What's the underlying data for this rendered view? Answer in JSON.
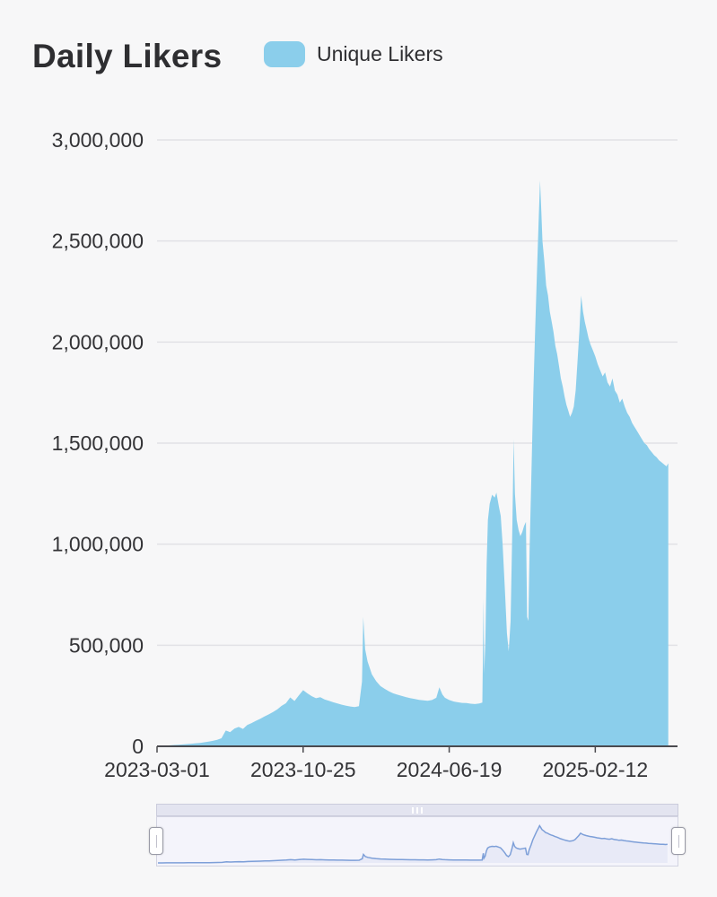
{
  "page": {
    "background_color": "#f7f7f8"
  },
  "header": {
    "title": "Daily Likers"
  },
  "legend": {
    "label": "Unique Likers",
    "swatch_color": "#8BCEEB"
  },
  "navigator": {
    "track_color": "#e3e4f0",
    "grip_color": "#ffffff",
    "background_color": "#f4f4fb",
    "fill_color": "#e8eaf7",
    "line_color": "#7d9fd8",
    "handle_color": "#ffffff",
    "handle_border_color": "#999aa6"
  },
  "chart_data": {
    "type": "area",
    "title": "Daily Likers",
    "legend_entries": [
      "Unique Likers"
    ],
    "legend_position": "top",
    "x_type": "time",
    "x_range": [
      "2023-03-01",
      "2025-06-26"
    ],
    "x_tick_labels": [
      "2023-03-01",
      "2023-10-25",
      "2024-06-19",
      "2025-02-12"
    ],
    "ylim": [
      0,
      3000000
    ],
    "y_ticks": [
      0,
      500000,
      1000000,
      1500000,
      2000000,
      2500000,
      3000000
    ],
    "y_tick_labels": [
      "0",
      "500,000",
      "1,000,000",
      "1,500,000",
      "2,000,000",
      "2,500,000",
      "3,000,000"
    ],
    "grid": "horizontal",
    "grid_color": "#e2e2e6",
    "axis_line_color": "#4a4a4f",
    "axis_label_color": "#333336",
    "series": [
      {
        "name": "Unique Likers",
        "color": "#8BCEEB",
        "points": [
          [
            "2023-03-01",
            2000
          ],
          [
            "2023-03-08",
            3000
          ],
          [
            "2023-03-15",
            4000
          ],
          [
            "2023-03-22",
            5000
          ],
          [
            "2023-03-29",
            6500
          ],
          [
            "2023-04-05",
            8000
          ],
          [
            "2023-04-12",
            9500
          ],
          [
            "2023-04-19",
            11000
          ],
          [
            "2023-04-26",
            13000
          ],
          [
            "2023-05-03",
            15000
          ],
          [
            "2023-05-10",
            17000
          ],
          [
            "2023-05-17",
            20000
          ],
          [
            "2023-05-24",
            23000
          ],
          [
            "2023-05-31",
            27000
          ],
          [
            "2023-06-07",
            32000
          ],
          [
            "2023-06-14",
            40000
          ],
          [
            "2023-06-21",
            78000
          ],
          [
            "2023-06-28",
            70000
          ],
          [
            "2023-07-05",
            88000
          ],
          [
            "2023-07-12",
            96000
          ],
          [
            "2023-07-19",
            86000
          ],
          [
            "2023-07-26",
            105000
          ],
          [
            "2023-08-02",
            115000
          ],
          [
            "2023-08-09",
            126000
          ],
          [
            "2023-08-16",
            136000
          ],
          [
            "2023-08-23",
            148000
          ],
          [
            "2023-08-30",
            158000
          ],
          [
            "2023-09-06",
            170000
          ],
          [
            "2023-09-13",
            183000
          ],
          [
            "2023-09-20",
            200000
          ],
          [
            "2023-09-27",
            213000
          ],
          [
            "2023-10-04",
            242000
          ],
          [
            "2023-10-11",
            224000
          ],
          [
            "2023-10-18",
            252000
          ],
          [
            "2023-10-25",
            278000
          ],
          [
            "2023-11-01",
            262000
          ],
          [
            "2023-11-08",
            248000
          ],
          [
            "2023-11-15",
            238000
          ],
          [
            "2023-11-22",
            243000
          ],
          [
            "2023-11-29",
            232000
          ],
          [
            "2023-12-06",
            225000
          ],
          [
            "2023-12-13",
            218000
          ],
          [
            "2023-12-20",
            212000
          ],
          [
            "2023-12-27",
            206000
          ],
          [
            "2024-01-03",
            201000
          ],
          [
            "2024-01-10",
            197000
          ],
          [
            "2024-01-17",
            194000
          ],
          [
            "2024-01-24",
            199000
          ],
          [
            "2024-01-29",
            320000
          ],
          [
            "2024-01-31",
            640000
          ],
          [
            "2024-02-03",
            480000
          ],
          [
            "2024-02-07",
            420000
          ],
          [
            "2024-02-14",
            356000
          ],
          [
            "2024-02-21",
            322000
          ],
          [
            "2024-02-28",
            298000
          ],
          [
            "2024-03-06",
            284000
          ],
          [
            "2024-03-13",
            272000
          ],
          [
            "2024-03-20",
            262000
          ],
          [
            "2024-03-27",
            255000
          ],
          [
            "2024-04-03",
            249000
          ],
          [
            "2024-04-10",
            243000
          ],
          [
            "2024-04-17",
            238000
          ],
          [
            "2024-04-24",
            234000
          ],
          [
            "2024-05-01",
            230000
          ],
          [
            "2024-05-08",
            227000
          ],
          [
            "2024-05-15",
            225000
          ],
          [
            "2024-05-22",
            229000
          ],
          [
            "2024-05-29",
            240000
          ],
          [
            "2024-06-03",
            292000
          ],
          [
            "2024-06-08",
            256000
          ],
          [
            "2024-06-12",
            240000
          ],
          [
            "2024-06-19",
            229000
          ],
          [
            "2024-06-26",
            222000
          ],
          [
            "2024-07-03",
            218000
          ],
          [
            "2024-07-10",
            215000
          ],
          [
            "2024-07-17",
            214000
          ],
          [
            "2024-07-24",
            211000
          ],
          [
            "2024-07-31",
            209000
          ],
          [
            "2024-08-07",
            212000
          ],
          [
            "2024-08-12",
            216000
          ],
          [
            "2024-08-14",
            730000
          ],
          [
            "2024-08-15",
            360000
          ],
          [
            "2024-08-17",
            520000
          ],
          [
            "2024-08-19",
            900000
          ],
          [
            "2024-08-21",
            1120000
          ],
          [
            "2024-08-24",
            1200000
          ],
          [
            "2024-08-28",
            1245000
          ],
          [
            "2024-09-01",
            1230000
          ],
          [
            "2024-09-04",
            1255000
          ],
          [
            "2024-09-08",
            1185000
          ],
          [
            "2024-09-11",
            1140000
          ],
          [
            "2024-09-14",
            1000000
          ],
          [
            "2024-09-18",
            760000
          ],
          [
            "2024-09-21",
            560000
          ],
          [
            "2024-09-24",
            470000
          ],
          [
            "2024-09-27",
            620000
          ],
          [
            "2024-09-30",
            1100000
          ],
          [
            "2024-10-02",
            1520000
          ],
          [
            "2024-10-04",
            1250000
          ],
          [
            "2024-10-07",
            1120000
          ],
          [
            "2024-10-10",
            1070000
          ],
          [
            "2024-10-13",
            1040000
          ],
          [
            "2024-10-16",
            1060000
          ],
          [
            "2024-10-19",
            1090000
          ],
          [
            "2024-10-22",
            1110000
          ],
          [
            "2024-10-24",
            640000
          ],
          [
            "2024-10-26",
            620000
          ],
          [
            "2024-10-28",
            980000
          ],
          [
            "2024-10-31",
            1350000
          ],
          [
            "2024-11-03",
            1750000
          ],
          [
            "2024-11-06",
            2050000
          ],
          [
            "2024-11-09",
            2350000
          ],
          [
            "2024-11-12",
            2620000
          ],
          [
            "2024-11-14",
            2800000
          ],
          [
            "2024-11-16",
            2650000
          ],
          [
            "2024-11-18",
            2500000
          ],
          [
            "2024-11-21",
            2400000
          ],
          [
            "2024-11-24",
            2280000
          ],
          [
            "2024-11-27",
            2230000
          ],
          [
            "2024-11-30",
            2150000
          ],
          [
            "2024-12-03",
            2100000
          ],
          [
            "2024-12-06",
            2050000
          ],
          [
            "2024-12-09",
            1980000
          ],
          [
            "2024-12-12",
            1940000
          ],
          [
            "2024-12-15",
            1880000
          ],
          [
            "2024-12-18",
            1820000
          ],
          [
            "2024-12-21",
            1780000
          ],
          [
            "2024-12-24",
            1730000
          ],
          [
            "2024-12-27",
            1690000
          ],
          [
            "2024-12-30",
            1660000
          ],
          [
            "2025-01-02",
            1630000
          ],
          [
            "2025-01-05",
            1650000
          ],
          [
            "2025-01-08",
            1680000
          ],
          [
            "2025-01-11",
            1760000
          ],
          [
            "2025-01-14",
            1900000
          ],
          [
            "2025-01-17",
            2050000
          ],
          [
            "2025-01-20",
            2230000
          ],
          [
            "2025-01-23",
            2150000
          ],
          [
            "2025-01-26",
            2100000
          ],
          [
            "2025-01-29",
            2060000
          ],
          [
            "2025-02-01",
            2020000
          ],
          [
            "2025-02-04",
            1990000
          ],
          [
            "2025-02-08",
            1960000
          ],
          [
            "2025-02-12",
            1930000
          ],
          [
            "2025-02-16",
            1890000
          ],
          [
            "2025-02-20",
            1860000
          ],
          [
            "2025-02-24",
            1830000
          ],
          [
            "2025-02-28",
            1850000
          ],
          [
            "2025-03-04",
            1800000
          ],
          [
            "2025-03-08",
            1780000
          ],
          [
            "2025-03-12",
            1820000
          ],
          [
            "2025-03-16",
            1760000
          ],
          [
            "2025-03-20",
            1740000
          ],
          [
            "2025-03-24",
            1700000
          ],
          [
            "2025-03-28",
            1720000
          ],
          [
            "2025-04-01",
            1680000
          ],
          [
            "2025-04-05",
            1650000
          ],
          [
            "2025-04-09",
            1630000
          ],
          [
            "2025-04-13",
            1600000
          ],
          [
            "2025-04-17",
            1580000
          ],
          [
            "2025-04-21",
            1560000
          ],
          [
            "2025-04-25",
            1540000
          ],
          [
            "2025-04-29",
            1520000
          ],
          [
            "2025-05-03",
            1500000
          ],
          [
            "2025-05-07",
            1490000
          ],
          [
            "2025-05-11",
            1470000
          ],
          [
            "2025-05-15",
            1455000
          ],
          [
            "2025-05-19",
            1440000
          ],
          [
            "2025-05-23",
            1430000
          ],
          [
            "2025-05-27",
            1415000
          ],
          [
            "2025-05-31",
            1405000
          ],
          [
            "2025-06-04",
            1395000
          ],
          [
            "2025-06-08",
            1385000
          ],
          [
            "2025-06-11",
            1400000
          ]
        ]
      }
    ]
  }
}
